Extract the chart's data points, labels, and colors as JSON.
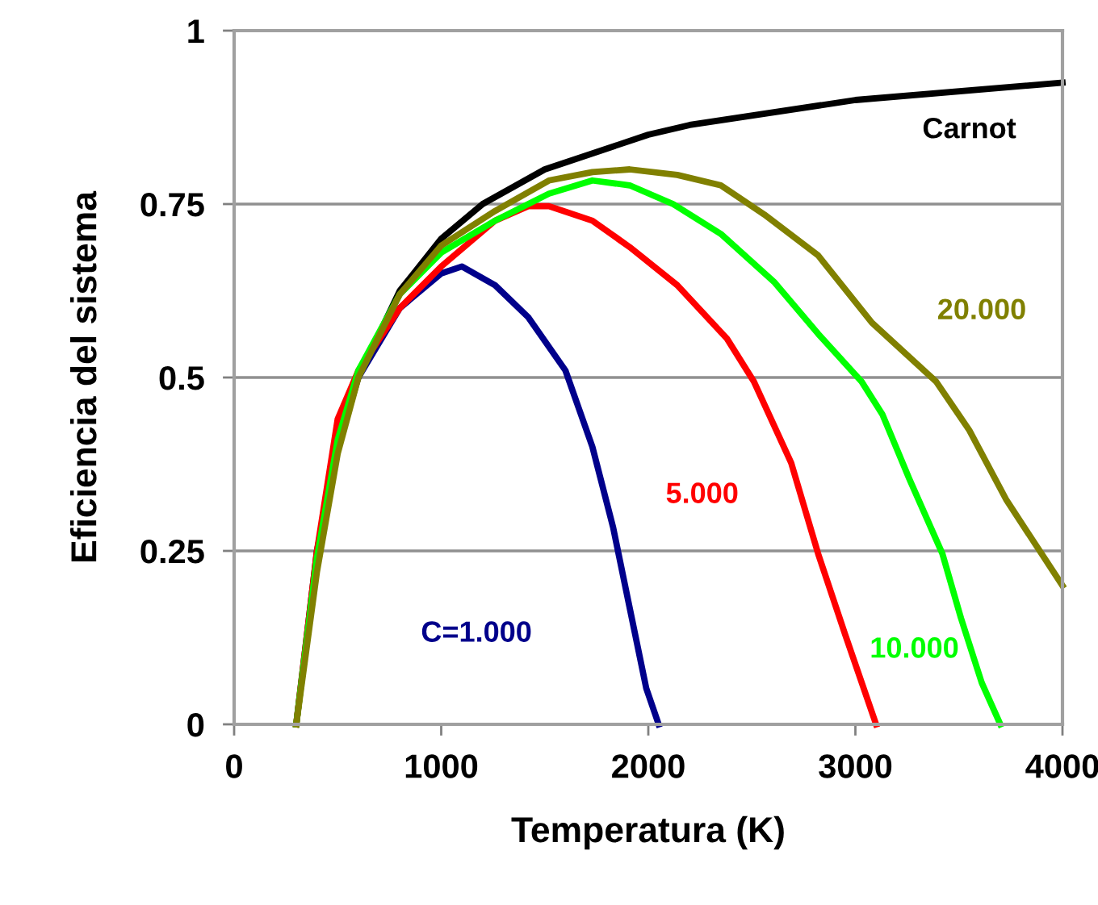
{
  "chart_data": {
    "type": "line",
    "xlabel": "Temperatura (K)",
    "ylabel": "Eficiencia del sistema",
    "xlim": [
      0,
      4000
    ],
    "xticks": [
      0,
      1000,
      2000,
      3000,
      4000
    ],
    "ylim": [
      0,
      1
    ],
    "yticks": [
      0,
      0.25,
      0.5,
      0.75,
      1
    ],
    "grid": "y",
    "line_style": "solid",
    "series": [
      {
        "name": "Carnot",
        "color": "#000000",
        "x": [
          300,
          400,
          500,
          600,
          800,
          1000,
          1200,
          1500,
          2000,
          2200,
          3000,
          4000
        ],
        "values": [
          0,
          0.25,
          0.4,
          0.5,
          0.625,
          0.7,
          0.75,
          0.8,
          0.85,
          0.864,
          0.9,
          0.925
        ]
      },
      {
        "name": "C=1.000",
        "color": "#00008b",
        "x": [
          600,
          800,
          1000,
          1100,
          1260,
          1420,
          1600,
          1730,
          1830,
          1990,
          2050
        ],
        "values": [
          0.5,
          0.6,
          0.65,
          0.66,
          0.633,
          0.587,
          0.51,
          0.4,
          0.284,
          0.052,
          0
        ]
      },
      {
        "name": "5.000",
        "color": "#ff0000",
        "x": [
          300,
          400,
          500,
          600,
          800,
          1000,
          1260,
          1420,
          1520,
          1730,
          1910,
          2140,
          2380,
          2510,
          2690,
          2820,
          2950,
          3100
        ],
        "values": [
          0,
          0.25,
          0.44,
          0.51,
          0.6,
          0.66,
          0.726,
          0.747,
          0.747,
          0.726,
          0.688,
          0.633,
          0.556,
          0.494,
          0.377,
          0.246,
          0.13,
          0
        ]
      },
      {
        "name": "10.000",
        "color": "#00ff00",
        "x": [
          300,
          400,
          500,
          600,
          800,
          1000,
          1260,
          1520,
          1730,
          1910,
          2120,
          2350,
          2610,
          2820,
          3030,
          3130,
          3260,
          3420,
          3510,
          3610,
          3700
        ],
        "values": [
          0,
          0.24,
          0.41,
          0.51,
          0.62,
          0.68,
          0.726,
          0.765,
          0.784,
          0.777,
          0.75,
          0.707,
          0.637,
          0.563,
          0.494,
          0.447,
          0.354,
          0.246,
          0.153,
          0.06,
          0
        ]
      },
      {
        "name": "20.000",
        "color": "#808000",
        "x": [
          300,
          400,
          500,
          600,
          800,
          1000,
          1260,
          1520,
          1730,
          1910,
          2140,
          2350,
          2560,
          2820,
          3080,
          3390,
          3550,
          3730,
          4000
        ],
        "values": [
          0,
          0.22,
          0.39,
          0.5,
          0.62,
          0.69,
          0.74,
          0.784,
          0.796,
          0.8,
          0.792,
          0.777,
          0.735,
          0.676,
          0.579,
          0.494,
          0.424,
          0.323,
          0.2
        ]
      }
    ]
  }
}
